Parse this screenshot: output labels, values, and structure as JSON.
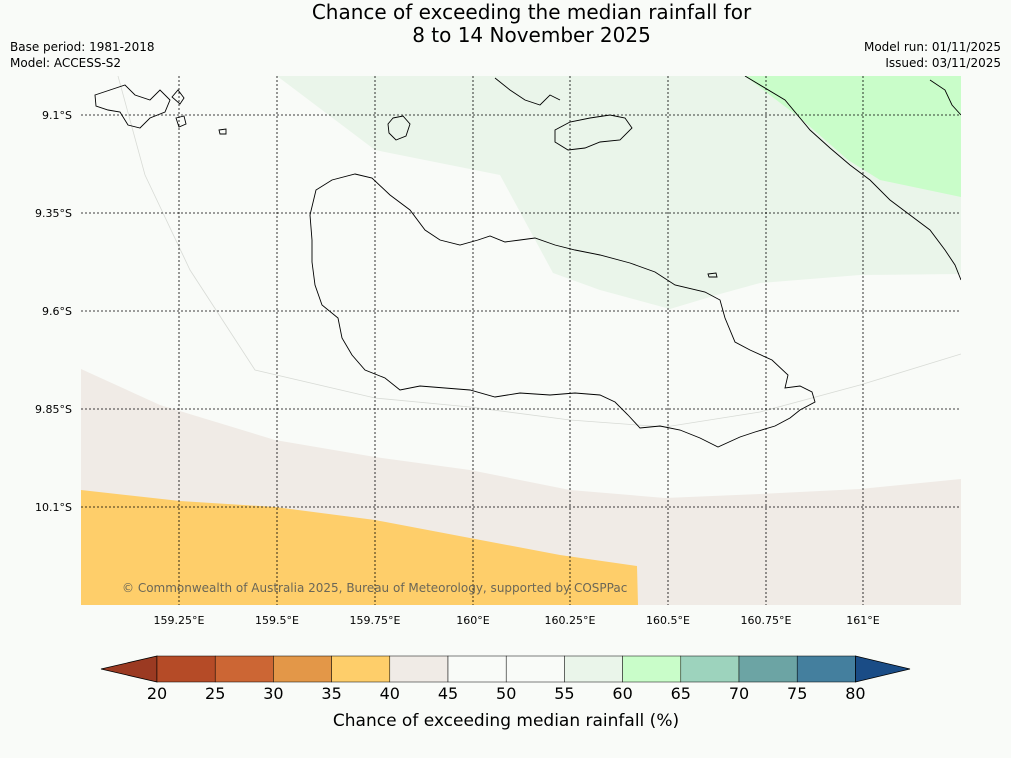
{
  "title_line1": "Chance of exceeding the median rainfall for",
  "title_line2": "8 to 14 November 2025",
  "base_period": "Base period: 1981-2018",
  "model": "Model: ACCESS-S2",
  "model_run": "Model run: 01/11/2025",
  "issued": "Issued: 03/11/2025",
  "copyright": "© Commonwealth of Australia 2025, Bureau of Meteorology, supported by COSPPac",
  "lat_labels": [
    "9.1°S",
    "9.35°S",
    "9.6°S",
    "9.85°S",
    "10.1°S"
  ],
  "lon_labels": [
    "159.25°E",
    "159.5°E",
    "159.75°E",
    "160°E",
    "160.25°E",
    "160.5°E",
    "160.75°E",
    "161°E"
  ],
  "colorbar": {
    "title": "Chance of exceeding median rainfall (%)",
    "labels": [
      "20",
      "25",
      "30",
      "35",
      "40",
      "45",
      "50",
      "55",
      "60",
      "65",
      "70",
      "75",
      "80"
    ],
    "colors": [
      "#9b3a22",
      "#b54b27",
      "#cc6634",
      "#e39748",
      "#fece6a",
      "#f0ebe6",
      "#f9fbf8",
      "#f9fbf8",
      "#eaf5ea",
      "#c9fdc9",
      "#9dd3bd",
      "#6ca4a4",
      "#447f9e",
      "#1a4c86"
    ]
  },
  "map_colors": {
    "band_35_40": "#fece6a",
    "band_40_45": "#f0ebe6",
    "band_55_60": "#eaf5ea",
    "band_60_65": "#c9fdc9",
    "ocean": "#f9fbf8"
  }
}
